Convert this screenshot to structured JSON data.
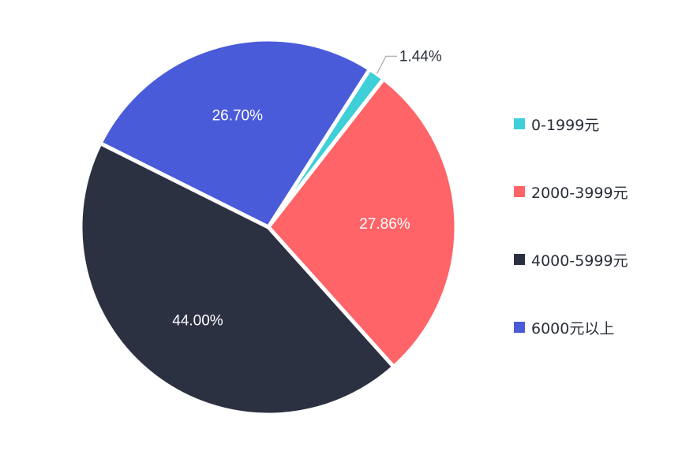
{
  "chart_data": {
    "type": "pie",
    "categories": [
      "0-1999元",
      "2000-3999元",
      "4000-5999元",
      "6000元以上"
    ],
    "values": [
      1.44,
      27.86,
      44.0,
      26.7
    ],
    "labels": [
      "1.44%",
      "27.86%",
      "44.00%",
      "26.70%"
    ],
    "colors": [
      "#3ecfd8",
      "#ff6468",
      "#2c3142",
      "#4a5bd9"
    ],
    "legend_position": "right"
  },
  "legend": {
    "items": [
      {
        "label": "0-1999元",
        "color": "#3ecfd8"
      },
      {
        "label": "2000-3999元",
        "color": "#ff6468"
      },
      {
        "label": "4000-5999元",
        "color": "#2c3142"
      },
      {
        "label": "6000元以上",
        "color": "#4a5bd9"
      }
    ]
  }
}
